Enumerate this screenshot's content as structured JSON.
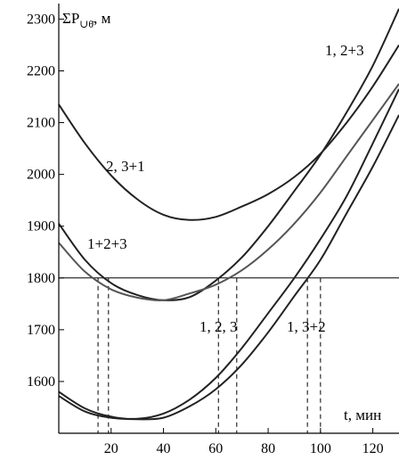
{
  "chart_data": {
    "type": "line",
    "ylabel": "ΣP",
    "ylabel_sub": "∪θ̄",
    "ylabel_unit": ", м",
    "xlabel": "t, мин",
    "xlim": [
      0,
      130
    ],
    "ylim": [
      1500,
      2330
    ],
    "x_ticks": [
      20,
      40,
      60,
      80,
      100,
      120
    ],
    "y_ticks": [
      1600,
      1700,
      1800,
      1900,
      2000,
      2100,
      2200,
      2300
    ],
    "reference_line": {
      "y": 1800
    },
    "crossings_x": [
      15,
      19,
      61,
      68,
      95,
      100
    ],
    "series": [
      {
        "name": "2, 3+1",
        "color": "#222222",
        "points": [
          [
            0,
            2135
          ],
          [
            10,
            2060
          ],
          [
            20,
            1998
          ],
          [
            30,
            1952
          ],
          [
            40,
            1922
          ],
          [
            50,
            1912
          ],
          [
            60,
            1918
          ],
          [
            70,
            1938
          ],
          [
            80,
            1962
          ],
          [
            90,
            1995
          ],
          [
            100,
            2040
          ],
          [
            110,
            2100
          ],
          [
            120,
            2170
          ],
          [
            130,
            2250
          ]
        ]
      },
      {
        "name": "1, 2+3",
        "color": "#222222",
        "points": [
          [
            0,
            1905
          ],
          [
            10,
            1835
          ],
          [
            20,
            1790
          ],
          [
            30,
            1767
          ],
          [
            40,
            1757
          ],
          [
            50,
            1763
          ],
          [
            60,
            1795
          ],
          [
            70,
            1840
          ],
          [
            80,
            1900
          ],
          [
            90,
            1968
          ],
          [
            100,
            2038
          ],
          [
            110,
            2120
          ],
          [
            120,
            2210
          ],
          [
            130,
            2320
          ]
        ]
      },
      {
        "name": "1+2+3",
        "color": "#555555",
        "points": [
          [
            0,
            1868
          ],
          [
            10,
            1812
          ],
          [
            20,
            1778
          ],
          [
            30,
            1762
          ],
          [
            40,
            1757
          ],
          [
            50,
            1770
          ],
          [
            60,
            1787
          ],
          [
            70,
            1815
          ],
          [
            80,
            1855
          ],
          [
            90,
            1905
          ],
          [
            100,
            1965
          ],
          [
            110,
            2035
          ],
          [
            120,
            2105
          ],
          [
            130,
            2175
          ]
        ]
      },
      {
        "name": "1, 3+2",
        "color": "#222222",
        "points": [
          [
            0,
            1580
          ],
          [
            10,
            1548
          ],
          [
            20,
            1532
          ],
          [
            30,
            1528
          ],
          [
            40,
            1538
          ],
          [
            50,
            1565
          ],
          [
            60,
            1607
          ],
          [
            70,
            1665
          ],
          [
            80,
            1732
          ],
          [
            90,
            1800
          ],
          [
            100,
            1875
          ],
          [
            110,
            1958
          ],
          [
            120,
            2060
          ],
          [
            130,
            2165
          ]
        ]
      },
      {
        "name": "1, 2, 3",
        "color": "#222222",
        "points": [
          [
            0,
            1572
          ],
          [
            10,
            1542
          ],
          [
            20,
            1530
          ],
          [
            30,
            1527
          ],
          [
            40,
            1530
          ],
          [
            50,
            1552
          ],
          [
            60,
            1585
          ],
          [
            70,
            1633
          ],
          [
            80,
            1695
          ],
          [
            90,
            1765
          ],
          [
            100,
            1835
          ],
          [
            110,
            1925
          ],
          [
            120,
            2015
          ],
          [
            130,
            2115
          ]
        ]
      }
    ],
    "labels": [
      {
        "text": "1, 2+3"
      },
      {
        "text": "2, 3+1"
      },
      {
        "text": "1+2+3"
      },
      {
        "text": "1, 2, 3"
      },
      {
        "text": "1, 3+2"
      }
    ]
  }
}
